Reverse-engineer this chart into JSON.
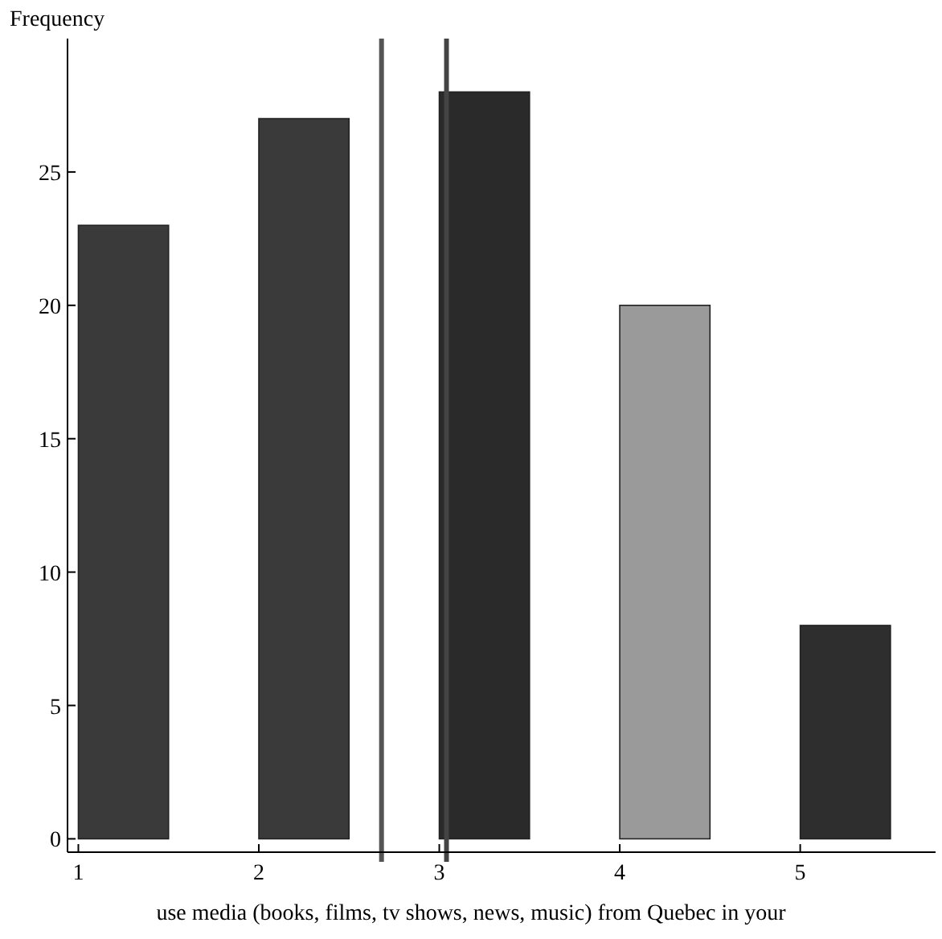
{
  "chart_data": {
    "type": "bar",
    "ylabel": "Frequency",
    "xlabel": "use media (books, films, tv shows, news, music) from Quebec in your",
    "x": [
      1.25,
      2.25,
      3.25,
      4.25,
      5.25
    ],
    "values": [
      23,
      27,
      28,
      20,
      8
    ],
    "colors": [
      "#3a3a3a",
      "#3a3a3a",
      "#2a2a2a",
      "#9a9a9a",
      "#2e2e2e"
    ],
    "xlim": [
      0.94,
      5.75
    ],
    "xticks": [
      1,
      2,
      3,
      4,
      5
    ],
    "ylim": [
      -0.5,
      30
    ],
    "yticks": [
      0,
      5,
      10,
      15,
      20,
      25
    ],
    "grid": false,
    "ref_lines": [
      {
        "axis": "x",
        "value": 2.68,
        "color": "#555555"
      },
      {
        "axis": "x",
        "value": 3.04,
        "color": "#444444"
      }
    ]
  }
}
